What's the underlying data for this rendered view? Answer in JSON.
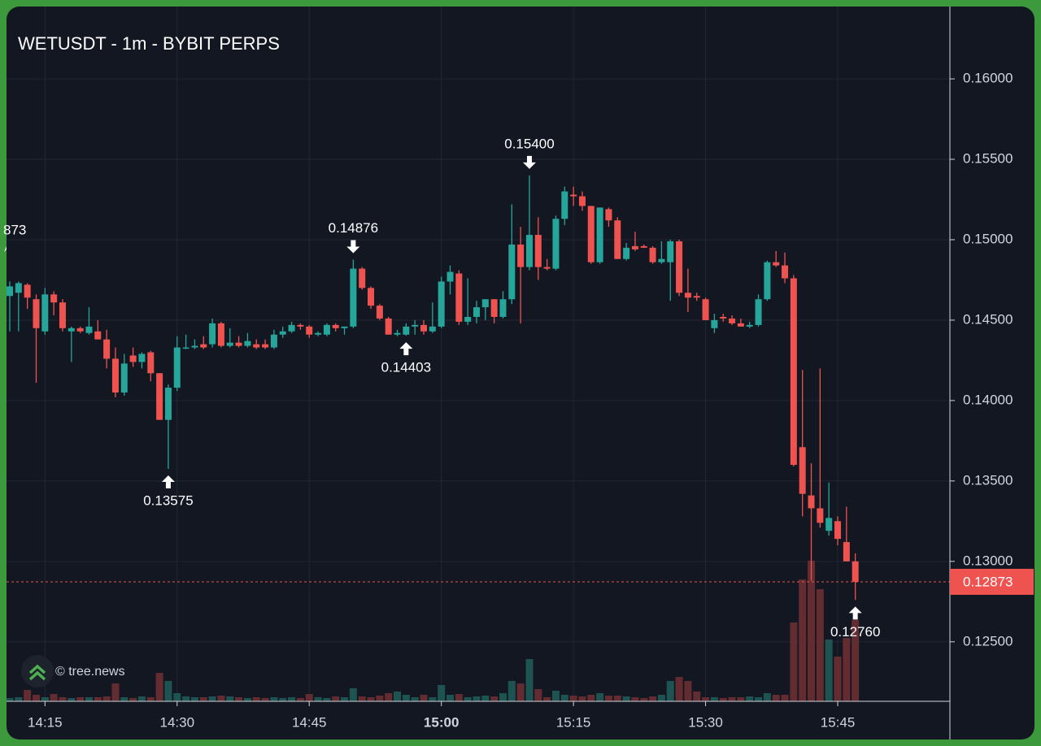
{
  "chart_data": {
    "type": "candlestick",
    "title": "WETUSDT - 1m - BYBIT PERPS",
    "watermark": "© tree.news",
    "edge_label": "873",
    "x": [
      "14:11",
      "14:12",
      "14:13",
      "14:14",
      "14:15",
      "14:16",
      "14:17",
      "14:18",
      "14:19",
      "14:20",
      "14:21",
      "14:22",
      "14:23",
      "14:24",
      "14:25",
      "14:26",
      "14:27",
      "14:28",
      "14:29",
      "14:30",
      "14:31",
      "14:32",
      "14:33",
      "14:34",
      "14:35",
      "14:36",
      "14:37",
      "14:38",
      "14:39",
      "14:40",
      "14:41",
      "14:42",
      "14:43",
      "14:44",
      "14:45",
      "14:46",
      "14:47",
      "14:48",
      "14:49",
      "14:50",
      "14:51",
      "14:52",
      "14:53",
      "14:54",
      "14:55",
      "14:56",
      "14:57",
      "14:58",
      "14:59",
      "15:00",
      "15:01",
      "15:02",
      "15:03",
      "15:04",
      "15:05",
      "15:06",
      "15:07",
      "15:08",
      "15:09",
      "15:10",
      "15:11",
      "15:12",
      "15:13",
      "15:14",
      "15:15",
      "15:16",
      "15:17",
      "15:18",
      "15:19",
      "15:20",
      "15:21",
      "15:22",
      "15:23",
      "15:24",
      "15:25",
      "15:26",
      "15:27",
      "15:28",
      "15:29",
      "15:30",
      "15:31",
      "15:32",
      "15:33",
      "15:34",
      "15:35",
      "15:36",
      "15:37",
      "15:38",
      "15:39",
      "15:40",
      "15:41",
      "15:42",
      "15:43",
      "15:44",
      "15:45",
      "15:46",
      "15:47"
    ],
    "open": [
      0.1465,
      0.1467,
      0.1472,
      0.1463,
      0.1443,
      0.1466,
      0.1461,
      0.1443,
      0.1445,
      0.1442,
      0.1443,
      0.1438,
      0.1426,
      0.1405,
      0.1428,
      0.1424,
      0.143,
      0.1417,
      0.1388,
      0.1408,
      0.1433,
      0.1433,
      0.1435,
      0.1435,
      0.1448,
      0.1434,
      0.1436,
      0.1434,
      0.1435,
      0.1435,
      0.1433,
      0.1441,
      0.1443,
      0.1447,
      0.1446,
      0.1441,
      0.1441,
      0.1447,
      0.1445,
      0.1446,
      0.1482,
      0.147,
      0.1459,
      0.1451,
      0.1441,
      0.1441,
      0.1446,
      0.1447,
      0.1443,
      0.1446,
      0.1474,
      0.1479,
      0.1449,
      0.1452,
      0.1458,
      0.1463,
      0.1452,
      0.1463,
      0.1497,
      0.1483,
      0.1503,
      0.1483,
      0.1482,
      0.1513,
      0.1528,
      0.1527,
      0.1521,
      0.1486,
      0.1519,
      0.1512,
      0.1488,
      0.1496,
      0.1496,
      0.1495,
      0.1486,
      0.1486,
      0.1499,
      0.1467,
      0.1465,
      0.1463,
      0.1445,
      0.1452,
      0.1451,
      0.1448,
      0.1446,
      0.1447,
      0.1463,
      0.1486,
      0.1484,
      0.1476,
      0.1371,
      0.1341,
      0.1333,
      0.1319,
      0.1325,
      0.1312,
      0.13
    ],
    "high": [
      0.1474,
      0.1474,
      0.1473,
      0.1466,
      0.147,
      0.1468,
      0.1463,
      0.1446,
      0.1446,
      0.1458,
      0.145,
      0.1444,
      0.1433,
      0.1429,
      0.1433,
      0.143,
      0.1431,
      0.1417,
      0.141,
      0.144,
      0.1441,
      0.1438,
      0.144,
      0.1451,
      0.1449,
      0.1445,
      0.144,
      0.1442,
      0.1438,
      0.1438,
      0.1444,
      0.1446,
      0.1449,
      0.1448,
      0.1447,
      0.1443,
      0.1448,
      0.1448,
      0.1446,
      0.14876,
      0.1483,
      0.1471,
      0.146,
      0.1452,
      0.1444,
      0.1448,
      0.145,
      0.145,
      0.1461,
      0.1477,
      0.1484,
      0.1481,
      0.1476,
      0.1462,
      0.1463,
      0.1463,
      0.1468,
      0.1522,
      0.1508,
      0.154,
      0.1514,
      0.1488,
      0.1515,
      0.1533,
      0.1533,
      0.153,
      0.1521,
      0.152,
      0.152,
      0.1514,
      0.1498,
      0.1505,
      0.1497,
      0.1496,
      0.1499,
      0.15,
      0.15,
      0.1482,
      0.1467,
      0.1464,
      0.1454,
      0.1454,
      0.1453,
      0.1451,
      0.1449,
      0.1466,
      0.1487,
      0.1493,
      0.1492,
      0.1478,
      0.1419,
      0.1361,
      0.142,
      0.1349,
      0.1328,
      0.1334,
      0.1305
    ],
    "low": [
      0.1443,
      0.1443,
      0.1457,
      0.1411,
      0.1441,
      0.1453,
      0.1443,
      0.1424,
      0.1442,
      0.1441,
      0.1438,
      0.142,
      0.1402,
      0.1403,
      0.1421,
      0.142,
      0.1412,
      0.1388,
      0.13575,
      0.1406,
      0.1432,
      0.1432,
      0.1432,
      0.1433,
      0.1433,
      0.1433,
      0.1433,
      0.1433,
      0.1432,
      0.1432,
      0.1432,
      0.1439,
      0.1442,
      0.1444,
      0.1439,
      0.144,
      0.144,
      0.1443,
      0.1441,
      0.1445,
      0.1469,
      0.1457,
      0.145,
      0.1441,
      0.144,
      0.14403,
      0.1441,
      0.1441,
      0.1442,
      0.1445,
      0.1466,
      0.1447,
      0.1447,
      0.1448,
      0.145,
      0.1448,
      0.1451,
      0.146,
      0.1448,
      0.1481,
      0.1475,
      0.1481,
      0.1481,
      0.1509,
      0.1521,
      0.1518,
      0.1485,
      0.1485,
      0.1508,
      0.1488,
      0.1487,
      0.1493,
      0.1495,
      0.1485,
      0.1485,
      0.1462,
      0.1465,
      0.1455,
      0.1462,
      0.145,
      0.1442,
      0.1449,
      0.1447,
      0.1446,
      0.1445,
      0.1446,
      0.1462,
      0.1483,
      0.1473,
      0.1359,
      0.1328,
      0.1288,
      0.1321,
      0.1316,
      0.131,
      0.13,
      0.1276
    ],
    "close": [
      0.1471,
      0.1473,
      0.1464,
      0.1445,
      0.1466,
      0.1461,
      0.1445,
      0.1445,
      0.1443,
      0.1446,
      0.1438,
      0.1426,
      0.1405,
      0.1423,
      0.1424,
      0.1429,
      0.1417,
      0.1388,
      0.1408,
      0.1433,
      0.1433,
      0.1434,
      0.1433,
      0.1448,
      0.1434,
      0.1436,
      0.1434,
      0.1437,
      0.1433,
      0.1433,
      0.1441,
      0.1443,
      0.1447,
      0.1446,
      0.1441,
      0.1442,
      0.1447,
      0.1445,
      0.1446,
      0.1482,
      0.147,
      0.1459,
      0.1451,
      0.1441,
      0.1442,
      0.1446,
      0.1447,
      0.1443,
      0.1446,
      0.1474,
      0.148,
      0.1449,
      0.1452,
      0.1458,
      0.1463,
      0.1452,
      0.1463,
      0.1497,
      0.1483,
      0.1503,
      0.1483,
      0.1482,
      0.1513,
      0.153,
      0.1527,
      0.1521,
      0.1486,
      0.152,
      0.1512,
      0.1488,
      0.1495,
      0.1494,
      0.1495,
      0.1486,
      0.1488,
      0.1499,
      0.1467,
      0.1464,
      0.1464,
      0.145,
      0.145,
      0.1451,
      0.1448,
      0.1446,
      0.1447,
      0.1463,
      0.1486,
      0.1484,
      0.1476,
      0.136,
      0.1342,
      0.1333,
      0.1324,
      0.1327,
      0.1314,
      0.13,
      0.12873
    ],
    "volume": [
      4,
      5,
      14,
      8,
      5,
      9,
      5,
      4,
      5,
      5,
      5,
      6,
      22,
      5,
      4,
      6,
      5,
      35,
      25,
      10,
      6,
      5,
      5,
      6,
      7,
      6,
      5,
      4,
      5,
      4,
      5,
      4,
      5,
      4,
      9,
      5,
      4,
      6,
      5,
      16,
      6,
      5,
      7,
      10,
      12,
      8,
      5,
      8,
      5,
      20,
      8,
      9,
      5,
      6,
      7,
      6,
      10,
      25,
      22,
      52,
      15,
      5,
      13,
      8,
      7,
      6,
      8,
      10,
      7,
      7,
      6,
      5,
      4,
      6,
      8,
      25,
      30,
      25,
      12,
      5,
      5,
      4,
      5,
      5,
      6,
      5,
      10,
      8,
      8,
      97,
      150,
      173,
      138,
      76,
      55,
      78,
      100
    ],
    "up_color": "#26a69a",
    "down_color": "#ef5350",
    "ylim": [
      0.1213,
      0.1645
    ],
    "yticks": [
      {
        "value": 0.125,
        "label": "0.12500"
      },
      {
        "value": 0.13,
        "label": "0.13000"
      },
      {
        "value": 0.135,
        "label": "0.13500"
      },
      {
        "value": 0.14,
        "label": "0.14000"
      },
      {
        "value": 0.145,
        "label": "0.14500"
      },
      {
        "value": 0.15,
        "label": "0.15000"
      },
      {
        "value": 0.155,
        "label": "0.15500"
      },
      {
        "value": 0.16,
        "label": "0.16000"
      }
    ],
    "xticks": [
      "14:15",
      "14:30",
      "14:45",
      "15:00",
      "15:15",
      "15:30",
      "15:45"
    ],
    "grid": true,
    "last_price": {
      "value": 0.12873,
      "label": "0.12873"
    },
    "annotations": [
      {
        "x": "14:29",
        "value": 0.13575,
        "label": "0.13575",
        "position": "below"
      },
      {
        "x": "14:50",
        "value": 0.14876,
        "label": "0.14876",
        "position": "above"
      },
      {
        "x": "14:56",
        "value": 0.14403,
        "label": "0.14403",
        "position": "below"
      },
      {
        "x": "15:10",
        "value": 0.154,
        "label": "0.15400",
        "position": "above"
      },
      {
        "x": "15:47",
        "value": 0.1276,
        "label": "0.12760",
        "position": "below"
      }
    ]
  }
}
